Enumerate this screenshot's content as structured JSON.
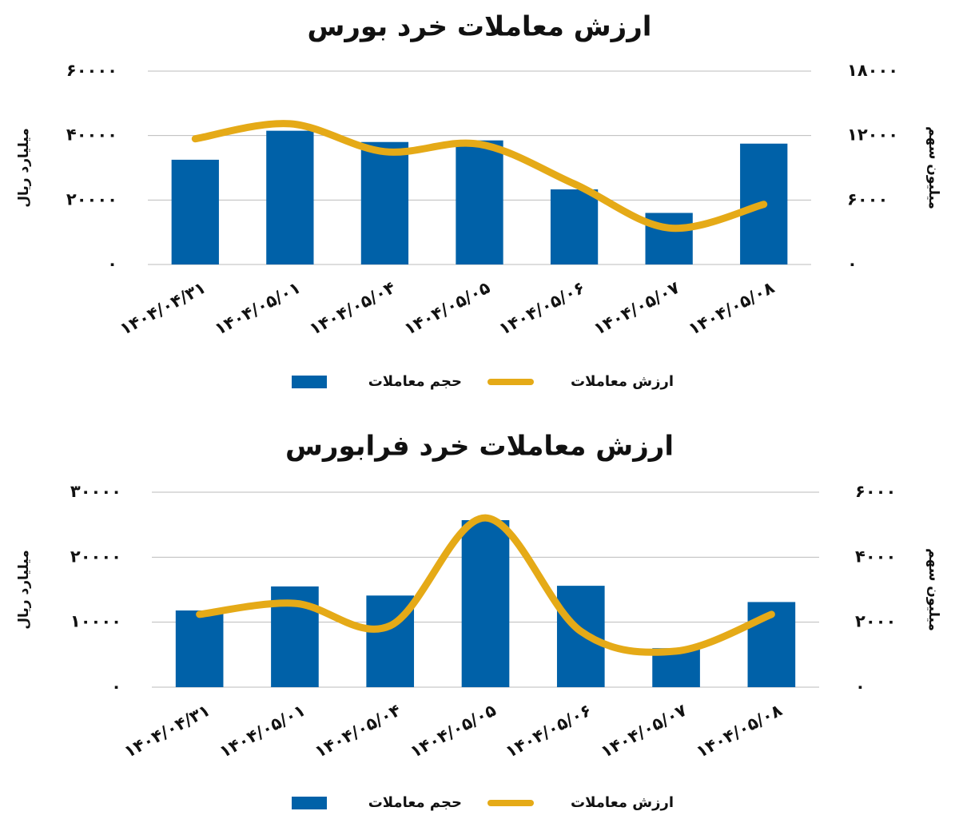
{
  "chart_data": [
    {
      "type": "bar-line",
      "title": "ارزش معاملات خرد بورس",
      "categories": [
        "۱۴۰۴/۰۴/۳۱",
        "۱۴۰۴/۰۵/۰۱",
        "۱۴۰۴/۰۵/۰۴",
        "۱۴۰۴/۰۵/۰۵",
        "۱۴۰۴/۰۵/۰۶",
        "۱۴۰۴/۰۵/۰۷",
        "۱۴۰۴/۰۵/۰۸"
      ],
      "series": [
        {
          "name": "حجم معاملات",
          "type": "bar",
          "color": "#0061a8",
          "values": [
            32500,
            41500,
            38000,
            38500,
            23300,
            16000,
            37500
          ]
        },
        {
          "name": "ارزش معاملات",
          "type": "line",
          "axis": "y2",
          "color": "#e5aa17",
          "values": [
            11700,
            13100,
            10500,
            11200,
            7500,
            3400,
            5600
          ]
        }
      ],
      "ylabel": "میلیارد ریال",
      "y2label": "میلیون سهم",
      "ylim": [
        0,
        60000
      ],
      "yticks": [
        {
          "value": 0,
          "label": "۰"
        },
        {
          "value": 20000,
          "label": "۲۰۰۰۰"
        },
        {
          "value": 40000,
          "label": "۴۰۰۰۰"
        },
        {
          "value": 60000,
          "label": "۶۰۰۰۰"
        }
      ],
      "y2lim": [
        0,
        18000
      ],
      "y2ticks": [
        {
          "value": 0,
          "label": "۰"
        },
        {
          "value": 6000,
          "label": "۶۰۰۰"
        },
        {
          "value": 12000,
          "label": "۱۲۰۰۰"
        },
        {
          "value": 18000,
          "label": "۱۸۰۰۰"
        }
      ],
      "grid": true,
      "legend": "bottom"
    },
    {
      "type": "bar-line",
      "title": "ارزش معاملات خرد فرابورس",
      "categories": [
        "۱۴۰۴/۰۴/۳۱",
        "۱۴۰۴/۰۵/۰۱",
        "۱۴۰۴/۰۵/۰۴",
        "۱۴۰۴/۰۵/۰۵",
        "۱۴۰۴/۰۵/۰۶",
        "۱۴۰۴/۰۵/۰۷",
        "۱۴۰۴/۰۵/۰۸"
      ],
      "series": [
        {
          "name": "حجم معاملات",
          "type": "bar",
          "color": "#0061a8",
          "values": [
            11800,
            15500,
            14100,
            25700,
            15600,
            6000,
            13100
          ]
        },
        {
          "name": "ارزش معاملات",
          "type": "line",
          "axis": "y2",
          "color": "#e5aa17",
          "values": [
            2240,
            2580,
            1890,
            5210,
            1720,
            1110,
            2240
          ]
        }
      ],
      "ylabel": "میلیارد ریال",
      "y2label": "میلیون سهم",
      "ylim": [
        0,
        30000
      ],
      "yticks": [
        {
          "value": 0,
          "label": "۰"
        },
        {
          "value": 10000,
          "label": "۱۰۰۰۰"
        },
        {
          "value": 20000,
          "label": "۲۰۰۰۰"
        },
        {
          "value": 30000,
          "label": "۳۰۰۰۰"
        }
      ],
      "y2lim": [
        0,
        6000
      ],
      "y2ticks": [
        {
          "value": 0,
          "label": "۰"
        },
        {
          "value": 2000,
          "label": "۲۰۰۰"
        },
        {
          "value": 4000,
          "label": "۴۰۰۰"
        },
        {
          "value": 6000,
          "label": "۶۰۰۰"
        }
      ],
      "grid": true,
      "legend": "bottom"
    }
  ]
}
